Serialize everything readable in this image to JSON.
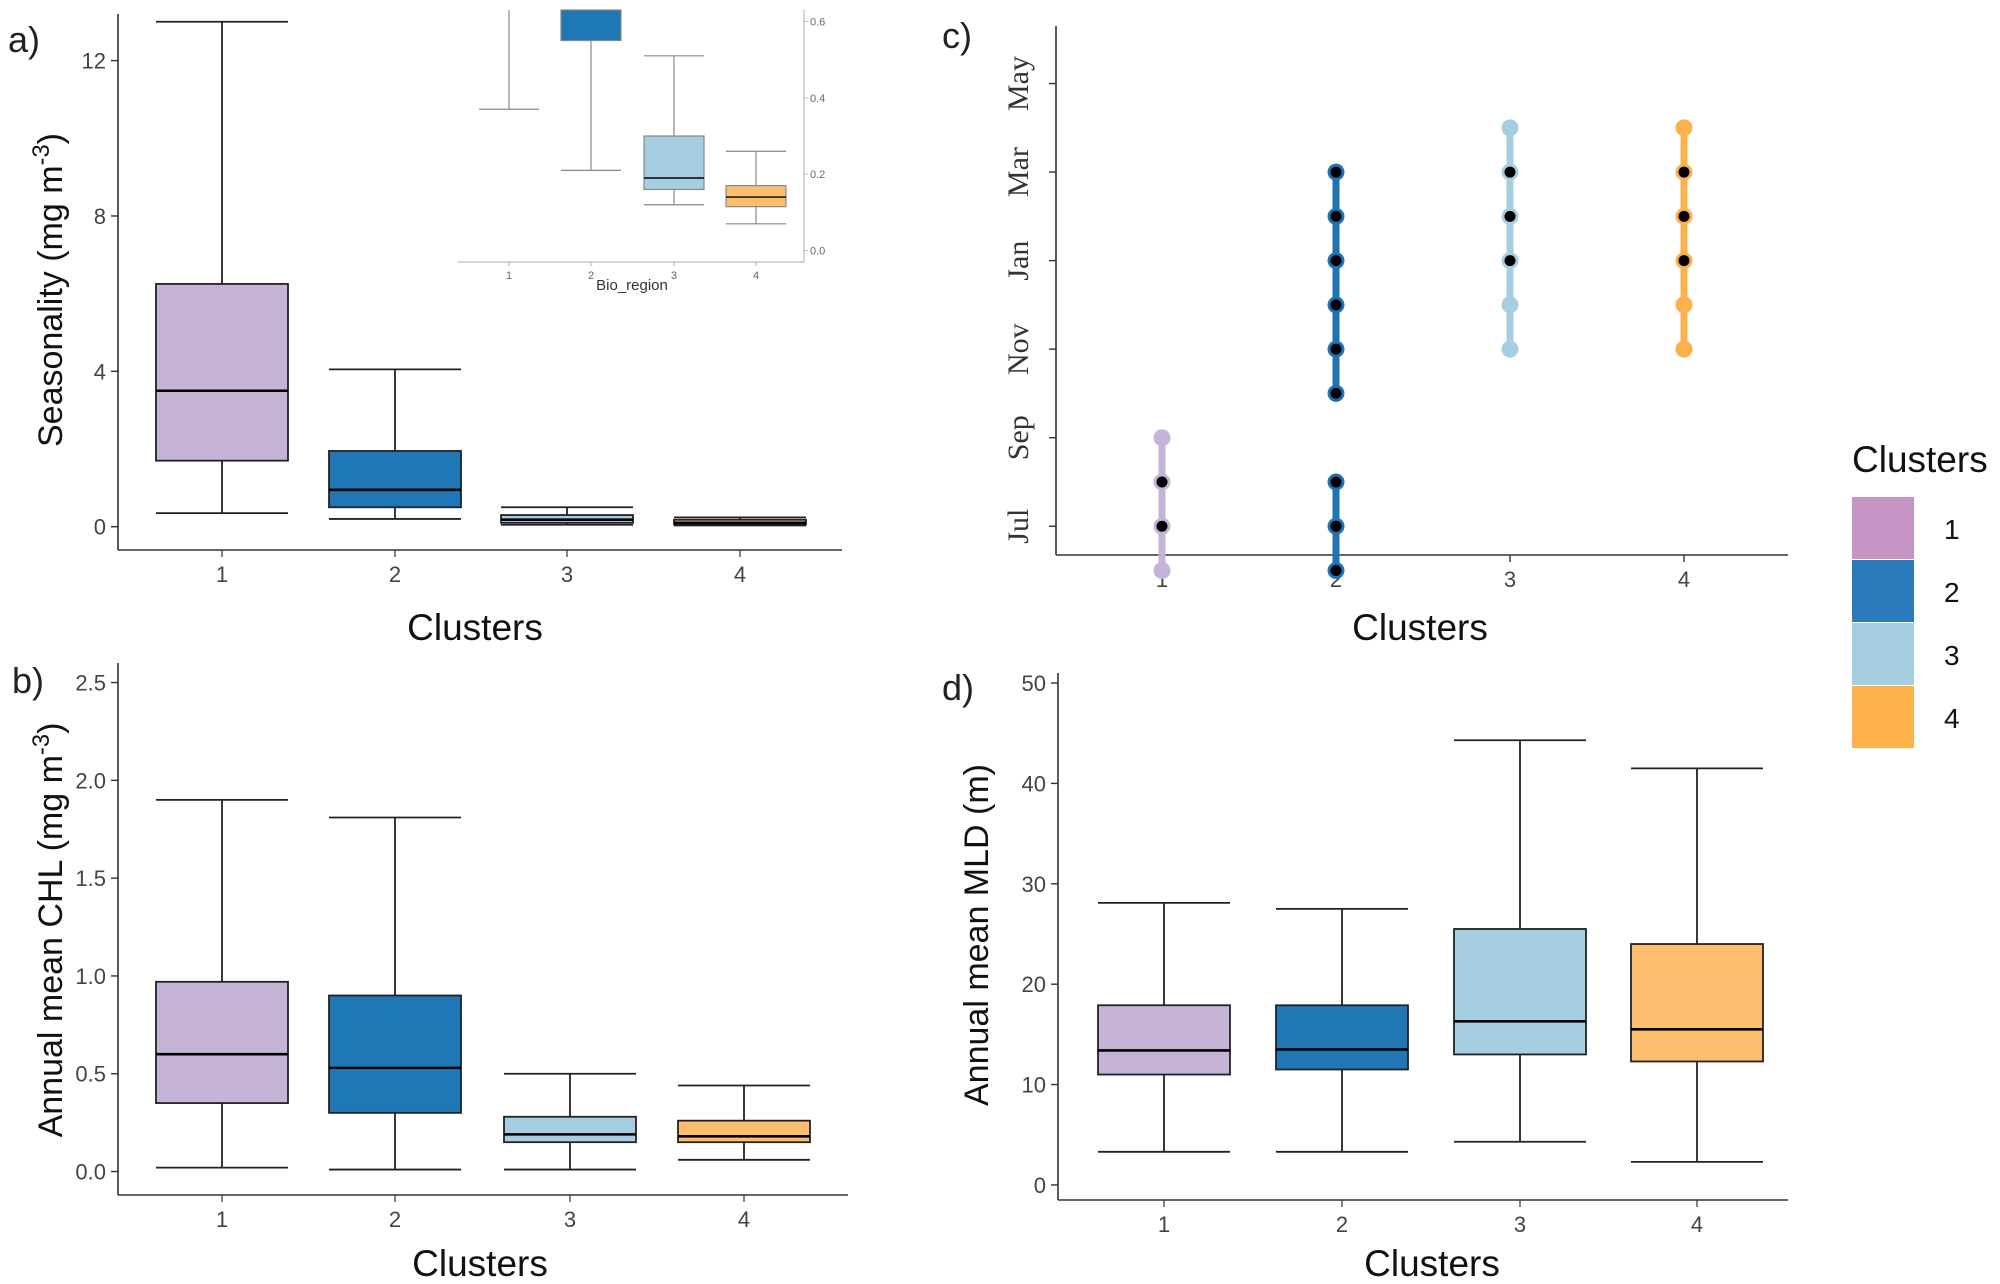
{
  "legend": {
    "title": "Clusters",
    "items": [
      {
        "label": "1",
        "color": "#c594c5"
      },
      {
        "label": "2",
        "color": "#2b7bba"
      },
      {
        "label": "3",
        "color": "#a6cee3"
      },
      {
        "label": "4",
        "color": "#fdb148"
      }
    ]
  },
  "panel_labels": {
    "a": "a)",
    "b": "b)",
    "c": "c)",
    "d": "d)"
  },
  "chart_data": [
    {
      "id": "a",
      "type": "box",
      "title": "",
      "xlabel": "Clusters",
      "ylabel": "Seasonality (mg m",
      "ylabel_sup": "-3",
      "ylabel_close": ")",
      "categories": [
        "1",
        "2",
        "3",
        "4"
      ],
      "ylim": [
        -0.6,
        13.2
      ],
      "yticks": [
        0,
        4,
        8,
        12
      ],
      "ytick_labels": [
        "0",
        "4",
        "8",
        "12"
      ],
      "boxes": [
        {
          "min": 0.35,
          "q1": 1.7,
          "median": 3.5,
          "q3": 6.25,
          "max": 13.0,
          "color": "#c5b3d8"
        },
        {
          "min": 0.2,
          "q1": 0.5,
          "median": 0.95,
          "q3": 1.95,
          "max": 4.05,
          "color": "#2077b6"
        },
        {
          "min": 0.05,
          "q1": 0.1,
          "median": 0.18,
          "q3": 0.3,
          "max": 0.5,
          "color": "#a6cee3"
        },
        {
          "min": 0.03,
          "q1": 0.06,
          "median": 0.1,
          "q3": 0.18,
          "max": 0.24,
          "color": "#fdbf6f"
        }
      ]
    },
    {
      "id": "a_inset",
      "type": "box",
      "title": "",
      "xlabel": "Bio_region",
      "categories": [
        "1",
        "2",
        "3",
        "4"
      ],
      "ylim": [
        -0.03,
        0.63
      ],
      "yticks": [
        0.0,
        0.2,
        0.4,
        0.6
      ],
      "ytick_labels": [
        "0.0",
        "0.2",
        "0.4",
        "0.6"
      ],
      "boxes": [
        {
          "min": null,
          "q1": null,
          "median": null,
          "q3": null,
          "max": 0.37,
          "color": "#c5b3d8",
          "whisker_top_clip": true
        },
        {
          "min": 0.21,
          "q1": 0.55,
          "median": null,
          "q3": 0.63,
          "max": null,
          "color": "#2077b6",
          "box_top_clip": true
        },
        {
          "min": 0.12,
          "q1": 0.16,
          "median": 0.19,
          "q3": 0.3,
          "max": 0.51,
          "color": "#a6cee3"
        },
        {
          "min": 0.07,
          "q1": 0.115,
          "median": 0.14,
          "q3": 0.17,
          "max": 0.26,
          "color": "#fdbf6f"
        }
      ]
    },
    {
      "id": "b",
      "type": "box",
      "title": "",
      "xlabel": "Clusters",
      "ylabel": "Annual mean CHL (mg m",
      "ylabel_sup": "-3",
      "ylabel_close": ")",
      "categories": [
        "1",
        "2",
        "3",
        "4"
      ],
      "ylim": [
        -0.12,
        2.6
      ],
      "yticks": [
        0.0,
        0.5,
        1.0,
        1.5,
        2.0,
        2.5
      ],
      "ytick_labels": [
        "0.0",
        "0.5",
        "1.0",
        "1.5",
        "2.0",
        "2.5"
      ],
      "boxes": [
        {
          "min": 0.02,
          "q1": 0.35,
          "median": 0.6,
          "q3": 0.97,
          "max": 1.9,
          "color": "#c5b3d8"
        },
        {
          "min": 0.01,
          "q1": 0.3,
          "median": 0.53,
          "q3": 0.9,
          "max": 1.81,
          "color": "#2077b6"
        },
        {
          "min": 0.01,
          "q1": 0.15,
          "median": 0.19,
          "q3": 0.28,
          "max": 0.5,
          "color": "#a6cee3"
        },
        {
          "min": 0.06,
          "q1": 0.15,
          "median": 0.18,
          "q3": 0.26,
          "max": 0.44,
          "color": "#fdbf6f"
        }
      ]
    },
    {
      "id": "c",
      "type": "scatter",
      "title": "",
      "xlabel": "Clusters",
      "categories": [
        "1",
        "2",
        "3",
        "4"
      ],
      "y_unit": "month index (Jul = 1)",
      "ylim": [
        0.35,
        12.3
      ],
      "yticks": [
        1,
        3,
        5,
        7,
        9,
        11
      ],
      "ytick_labels": [
        "Jul",
        "Sep",
        "Nov",
        "Jan",
        "Mar",
        "May"
      ],
      "series": [
        {
          "name": "1",
          "color": "#c5b3d8",
          "segments": [
            [
              0,
              3
            ]
          ],
          "light_points": [
            0,
            3
          ],
          "dark_points": [
            1,
            2
          ]
        },
        {
          "name": "2",
          "color": "#1f73b3",
          "segments": [
            [
              0,
              2
            ],
            [
              4.0,
              9.0
            ]
          ],
          "light_points": [],
          "dark_points": [
            0,
            1,
            2,
            4.0,
            5.0,
            6.0,
            7.0,
            8.0,
            9.0
          ]
        },
        {
          "name": "3",
          "color": "#a6cee3",
          "segments": [
            [
              5.0,
              10.0
            ]
          ],
          "light_points": [
            5.0,
            6.0,
            10.0
          ],
          "dark_points": [
            7.0,
            8.0,
            9.0
          ]
        },
        {
          "name": "4",
          "color": "#fdb14c",
          "segments": [
            [
              5.0,
              10.0
            ]
          ],
          "light_points": [
            5.0,
            6.0,
            10.0
          ],
          "dark_points": [
            7.0,
            8.0,
            9.0
          ]
        }
      ]
    },
    {
      "id": "d",
      "type": "box",
      "title": "",
      "xlabel": "Clusters",
      "ylabel": "Annual mean MLD (m)",
      "categories": [
        "1",
        "2",
        "3",
        "4"
      ],
      "ylim": [
        -1.5,
        51
      ],
      "yticks": [
        0,
        10,
        20,
        30,
        40,
        50
      ],
      "ytick_labels": [
        "0",
        "10",
        "20",
        "30",
        "40",
        "50"
      ],
      "boxes": [
        {
          "min": 3.3,
          "q1": 11.0,
          "median": 13.4,
          "q3": 17.9,
          "max": 28.1,
          "color": "#c5b3d8"
        },
        {
          "min": 3.3,
          "q1": 11.5,
          "median": 13.5,
          "q3": 17.9,
          "max": 27.5,
          "color": "#2077b6"
        },
        {
          "min": 4.3,
          "q1": 13.0,
          "median": 16.3,
          "q3": 25.5,
          "max": 44.3,
          "color": "#a6cee3"
        },
        {
          "min": 2.3,
          "q1": 12.3,
          "median": 15.5,
          "q3": 24.0,
          "max": 41.5,
          "color": "#fdbf6f"
        }
      ]
    }
  ]
}
